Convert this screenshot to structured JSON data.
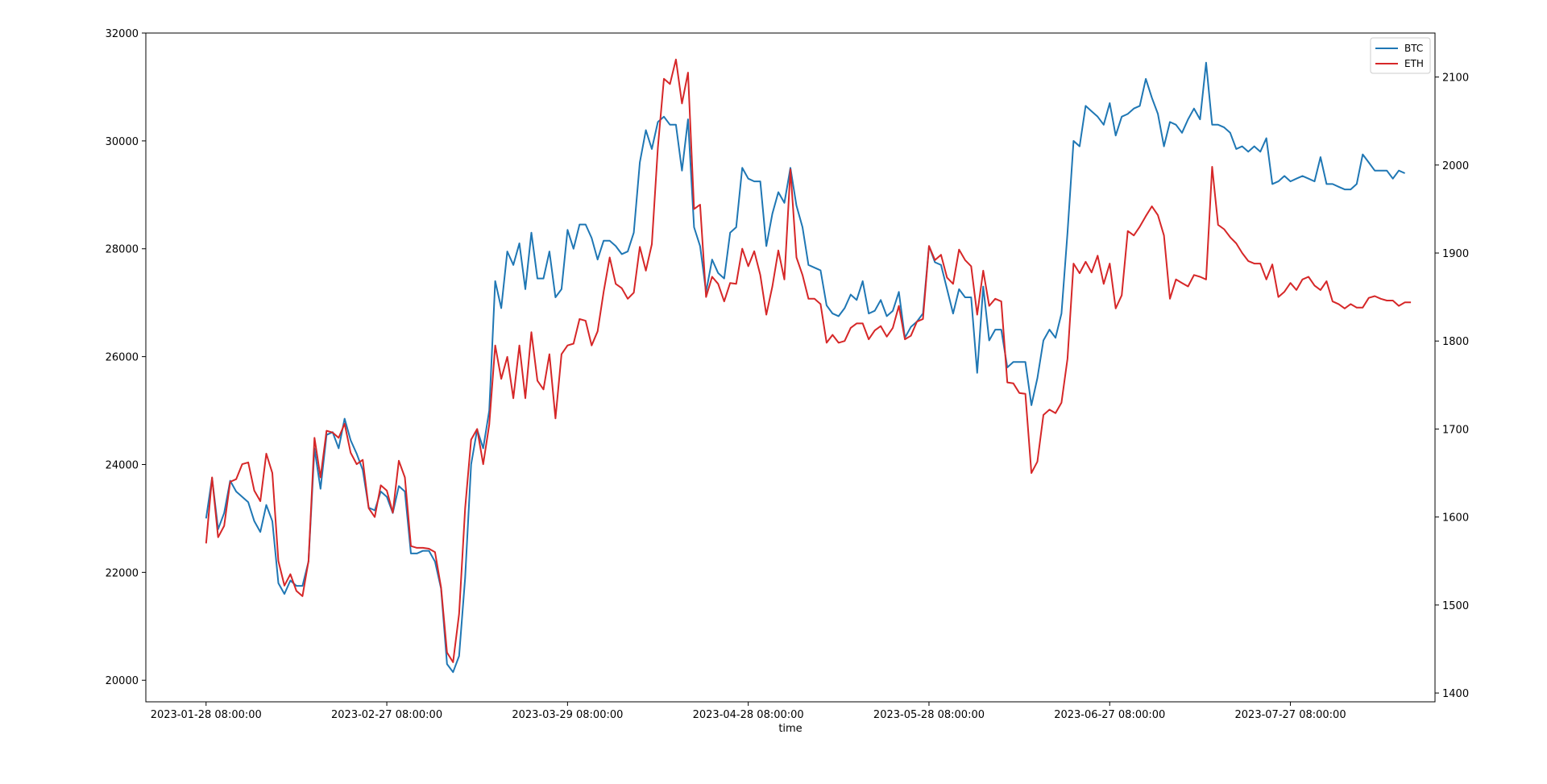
{
  "chart_data": {
    "type": "line",
    "title": "",
    "xlabel": "time",
    "ylabel": "",
    "y2label": "",
    "x_tick_labels": [
      "2023-01-28 08:00:00",
      "2023-02-27 08:00:00",
      "2023-03-29 08:00:00",
      "2023-04-28 08:00:00",
      "2023-05-28 08:00:00",
      "2023-06-27 08:00:00",
      "2023-07-27 08:00:00"
    ],
    "x_tick_days": [
      0,
      30,
      60,
      90,
      120,
      150,
      180
    ],
    "x_range_days": [
      -10,
      204
    ],
    "y_left": {
      "lim": [
        19600,
        32000
      ],
      "ticks": [
        20000,
        22000,
        24000,
        26000,
        28000,
        30000,
        32000
      ]
    },
    "y_right": {
      "lim": [
        1390,
        2150
      ],
      "ticks": [
        1400,
        1500,
        1600,
        1700,
        1800,
        1900,
        2000,
        2100
      ]
    },
    "legend": {
      "position": "top-right",
      "entries": [
        "BTC",
        "ETH"
      ]
    },
    "grid": false,
    "series": [
      {
        "name": "BTC",
        "axis": "left",
        "color": "#1f77b4",
        "values": [
          23000,
          23750,
          22800,
          23100,
          23700,
          23500,
          23400,
          23300,
          22950,
          22750,
          23250,
          22950,
          21800,
          21600,
          21850,
          21750,
          21750,
          22200,
          24300,
          23550,
          24550,
          24600,
          24300,
          24850,
          24450,
          24200,
          23900,
          23200,
          23150,
          23500,
          23400,
          23100,
          23600,
          23500,
          22350,
          22350,
          22400,
          22400,
          22200,
          21700,
          20300,
          20150,
          20450,
          21900,
          24000,
          24650,
          24300,
          25000,
          27400,
          26900,
          27950,
          27700,
          28100,
          27250,
          28300,
          27450,
          27450,
          27950,
          27100,
          27250,
          28350,
          28000,
          28450,
          28450,
          28200,
          27800,
          28150,
          28150,
          28050,
          27900,
          27950,
          28300,
          29600,
          30200,
          29850,
          30350,
          30450,
          30300,
          30300,
          29450,
          30400,
          28400,
          28050,
          27200,
          27800,
          27550,
          27450,
          28300,
          28400,
          29500,
          29300,
          29250,
          29250,
          28050,
          28650,
          29050,
          28850,
          29500,
          28800,
          28400,
          27700,
          27650,
          27600,
          26950,
          26800,
          26750,
          26900,
          27150,
          27050,
          27400,
          26800,
          26850,
          27050,
          26750,
          26850,
          27200,
          26350,
          26550,
          26650,
          26800,
          28050,
          27750,
          27700,
          27250,
          26800,
          27250,
          27100,
          27100,
          25700,
          27300,
          26300,
          26500,
          26500,
          25800,
          25900,
          25900,
          25900,
          25100,
          25600,
          26300,
          26500,
          26350,
          26800,
          28300,
          30000,
          29900,
          30650,
          30550,
          30450,
          30300,
          30700,
          30100,
          30450,
          30500,
          30600,
          30650,
          31150,
          30800,
          30500,
          29900,
          30350,
          30300,
          30150,
          30400,
          30600,
          30400,
          31450,
          30300,
          30300,
          30250,
          30150,
          29850,
          29900,
          29800,
          29900,
          29800,
          30050,
          29200,
          29250,
          29350,
          29250,
          29300,
          29350,
          29300,
          29250,
          29700,
          29200,
          29200,
          29150,
          29100,
          29100,
          29200,
          29750,
          29600,
          29450,
          29450,
          29450,
          29300,
          29450,
          29400
        ]
      },
      {
        "name": "ETH",
        "axis": "right",
        "color": "#d62728",
        "values": [
          1570,
          1645,
          1577,
          1590,
          1640,
          1643,
          1660,
          1662,
          1630,
          1618,
          1672,
          1650,
          1550,
          1522,
          1535,
          1516,
          1510,
          1550,
          1690,
          1645,
          1698,
          1696,
          1690,
          1706,
          1673,
          1660,
          1665,
          1610,
          1600,
          1636,
          1630,
          1605,
          1664,
          1645,
          1567,
          1565,
          1565,
          1564,
          1560,
          1520,
          1446,
          1435,
          1490,
          1610,
          1688,
          1700,
          1660,
          1705,
          1795,
          1757,
          1782,
          1735,
          1795,
          1735,
          1810,
          1755,
          1745,
          1785,
          1712,
          1785,
          1795,
          1797,
          1825,
          1823,
          1795,
          1811,
          1856,
          1895,
          1865,
          1860,
          1848,
          1855,
          1907,
          1880,
          1910,
          2020,
          2098,
          2092,
          2120,
          2070,
          2105,
          1950,
          1955,
          1850,
          1873,
          1865,
          1845,
          1866,
          1865,
          1905,
          1885,
          1902,
          1875,
          1830,
          1862,
          1903,
          1870,
          1995,
          1895,
          1875,
          1848,
          1848,
          1842,
          1798,
          1807,
          1798,
          1800,
          1815,
          1820,
          1820,
          1802,
          1812,
          1817,
          1805,
          1815,
          1840,
          1802,
          1806,
          1822,
          1825,
          1908,
          1892,
          1898,
          1872,
          1865,
          1904,
          1892,
          1885,
          1830,
          1880,
          1840,
          1848,
          1845,
          1753,
          1752,
          1741,
          1740,
          1650,
          1663,
          1716,
          1722,
          1718,
          1730,
          1780,
          1888,
          1877,
          1890,
          1878,
          1897,
          1865,
          1888,
          1837,
          1852,
          1925,
          1920,
          1930,
          1942,
          1953,
          1943,
          1920,
          1848,
          1870,
          1866,
          1862,
          1875,
          1873,
          1870,
          1998,
          1932,
          1927,
          1918,
          1911,
          1900,
          1891,
          1888,
          1888,
          1870,
          1887,
          1850,
          1856,
          1866,
          1858,
          1870,
          1873,
          1863,
          1858,
          1868,
          1845,
          1842,
          1837,
          1842,
          1838,
          1838,
          1849,
          1851,
          1848,
          1846,
          1846,
          1840,
          1844,
          1844
        ]
      }
    ]
  }
}
